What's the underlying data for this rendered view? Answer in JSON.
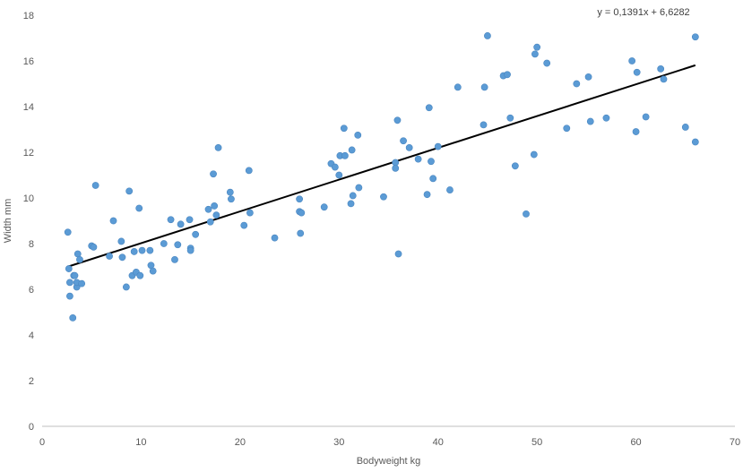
{
  "chart_data": {
    "type": "scatter",
    "xlabel": "Bodyweight kg",
    "ylabel": "Width mm",
    "xlim": [
      0,
      70
    ],
    "ylim": [
      0,
      18
    ],
    "xticks": [
      "0",
      "10",
      "20",
      "30",
      "40",
      "50",
      "60",
      "70"
    ],
    "yticks": [
      "0",
      "2",
      "4",
      "6",
      "8",
      "10",
      "12",
      "14",
      "16",
      "18"
    ],
    "grid": false,
    "legend": "none",
    "point_color": "#5b9bd5",
    "trendline": {
      "equation": "y = 0,1391x + 6,6282",
      "slope": 0.1391,
      "intercept": 6.6282,
      "x_range": [
        2.6,
        66
      ],
      "color": "#000000"
    },
    "points": [
      [
        2.6,
        8.5
      ],
      [
        2.7,
        6.9
      ],
      [
        2.8,
        6.3
      ],
      [
        2.8,
        5.7
      ],
      [
        3.1,
        4.75
      ],
      [
        3.2,
        6.6
      ],
      [
        3.3,
        6.6
      ],
      [
        3.5,
        6.1
      ],
      [
        3.5,
        6.3
      ],
      [
        3.6,
        7.55
      ],
      [
        3.8,
        7.3
      ],
      [
        4.0,
        6.25
      ],
      [
        5.0,
        7.9
      ],
      [
        5.2,
        7.85
      ],
      [
        5.4,
        10.55
      ],
      [
        6.8,
        7.45
      ],
      [
        7.2,
        9.0
      ],
      [
        8.0,
        8.1
      ],
      [
        8.1,
        7.4
      ],
      [
        8.5,
        6.1
      ],
      [
        8.8,
        10.3
      ],
      [
        9.1,
        6.6
      ],
      [
        9.3,
        7.65
      ],
      [
        9.5,
        6.75
      ],
      [
        9.8,
        9.55
      ],
      [
        9.9,
        6.6
      ],
      [
        10.1,
        7.7
      ],
      [
        10.9,
        7.7
      ],
      [
        11.0,
        7.05
      ],
      [
        11.2,
        6.8
      ],
      [
        12.3,
        8.0
      ],
      [
        13.0,
        9.05
      ],
      [
        13.4,
        7.3
      ],
      [
        13.7,
        7.95
      ],
      [
        14.0,
        8.85
      ],
      [
        14.9,
        9.05
      ],
      [
        15.0,
        7.8
      ],
      [
        15.0,
        7.7
      ],
      [
        15.5,
        8.4
      ],
      [
        16.8,
        9.5
      ],
      [
        17.0,
        8.95
      ],
      [
        17.3,
        11.05
      ],
      [
        17.4,
        9.65
      ],
      [
        17.6,
        9.25
      ],
      [
        17.8,
        12.2
      ],
      [
        19.0,
        10.25
      ],
      [
        19.1,
        9.95
      ],
      [
        20.4,
        8.8
      ],
      [
        20.9,
        11.2
      ],
      [
        21.0,
        9.35
      ],
      [
        23.5,
        8.25
      ],
      [
        26.0,
        9.95
      ],
      [
        26.0,
        9.4
      ],
      [
        26.1,
        8.45
      ],
      [
        26.2,
        9.35
      ],
      [
        28.5,
        9.6
      ],
      [
        29.2,
        11.5
      ],
      [
        29.6,
        11.35
      ],
      [
        30.0,
        11.0
      ],
      [
        30.1,
        11.85
      ],
      [
        30.5,
        13.05
      ],
      [
        30.6,
        11.85
      ],
      [
        31.2,
        9.75
      ],
      [
        31.3,
        12.1
      ],
      [
        31.4,
        10.1
      ],
      [
        31.9,
        12.75
      ],
      [
        32.0,
        10.45
      ],
      [
        34.5,
        10.05
      ],
      [
        35.7,
        11.55
      ],
      [
        35.7,
        11.3
      ],
      [
        35.9,
        13.4
      ],
      [
        36.0,
        7.55
      ],
      [
        36.5,
        12.5
      ],
      [
        37.1,
        12.2
      ],
      [
        38.0,
        11.7
      ],
      [
        38.9,
        10.15
      ],
      [
        39.1,
        13.95
      ],
      [
        39.3,
        11.6
      ],
      [
        39.5,
        10.85
      ],
      [
        40.0,
        12.25
      ],
      [
        41.2,
        10.35
      ],
      [
        42.0,
        14.85
      ],
      [
        44.6,
        13.2
      ],
      [
        44.7,
        14.85
      ],
      [
        45.0,
        17.1
      ],
      [
        46.6,
        15.35
      ],
      [
        47.0,
        15.4
      ],
      [
        47.3,
        13.5
      ],
      [
        47.8,
        11.4
      ],
      [
        48.9,
        9.3
      ],
      [
        49.7,
        11.9
      ],
      [
        49.8,
        16.3
      ],
      [
        50.0,
        16.6
      ],
      [
        51.0,
        15.9
      ],
      [
        53.0,
        13.05
      ],
      [
        54.0,
        15.0
      ],
      [
        55.2,
        15.3
      ],
      [
        55.4,
        13.35
      ],
      [
        57.0,
        13.5
      ],
      [
        59.6,
        16.0
      ],
      [
        60.0,
        12.9
      ],
      [
        60.1,
        15.5
      ],
      [
        61.0,
        13.55
      ],
      [
        62.5,
        15.65
      ],
      [
        62.8,
        15.2
      ],
      [
        65.0,
        13.1
      ],
      [
        66.0,
        12.45
      ],
      [
        66.0,
        17.05
      ]
    ]
  }
}
